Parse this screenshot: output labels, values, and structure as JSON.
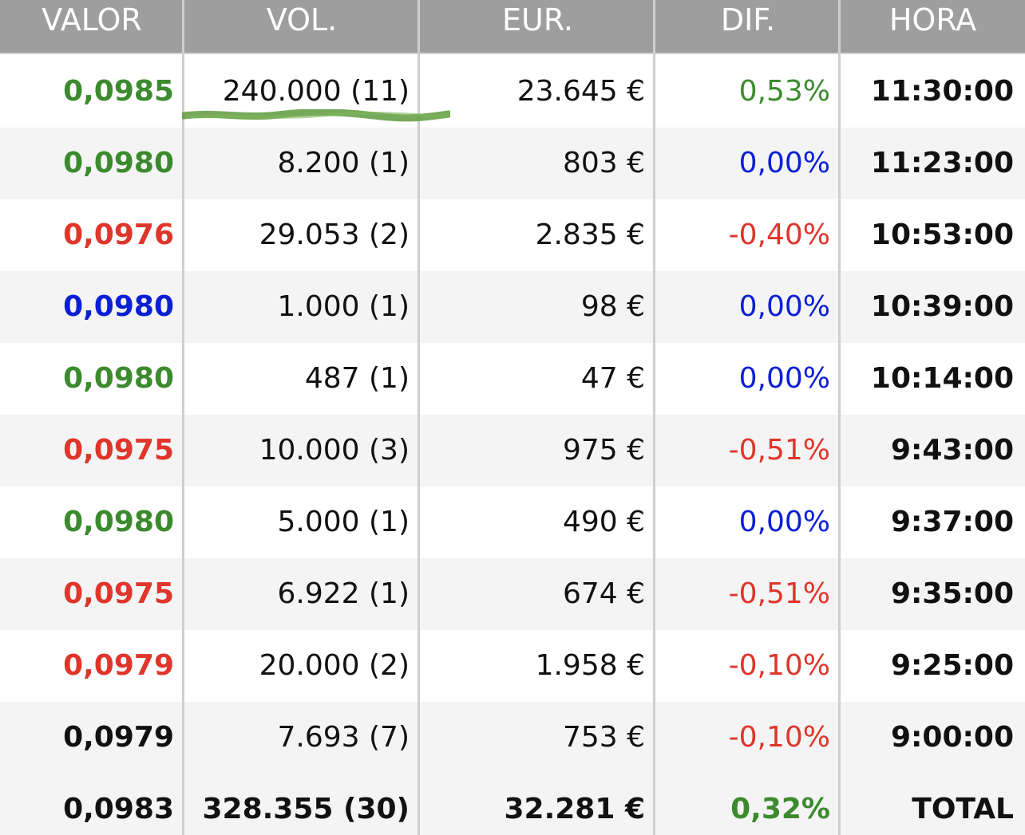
{
  "colors": {
    "green": "#3c8a2e",
    "red": "#e0352b",
    "blue": "#0a1fd6",
    "black": "#111111",
    "header_bg": "#9e9e9e",
    "highlight": "#5f9a3e"
  },
  "headers": {
    "valor": "VALOR",
    "vol": "VOL.",
    "eur": "EUR.",
    "dif": "DIF.",
    "hora": "HORA"
  },
  "rows": [
    {
      "valor": "0,0985",
      "valor_color": "green",
      "vol": "240.000 (11)",
      "eur": "23.645 €",
      "dif": "0,53%",
      "dif_color": "green",
      "hora": "11:30:00"
    },
    {
      "valor": "0,0980",
      "valor_color": "green",
      "vol": "8.200 (1)",
      "eur": "803 €",
      "dif": "0,00%",
      "dif_color": "blue",
      "hora": "11:23:00"
    },
    {
      "valor": "0,0976",
      "valor_color": "red",
      "vol": "29.053 (2)",
      "eur": "2.835 €",
      "dif": "-0,40%",
      "dif_color": "red",
      "hora": "10:53:00"
    },
    {
      "valor": "0,0980",
      "valor_color": "blue",
      "vol": "1.000 (1)",
      "eur": "98 €",
      "dif": "0,00%",
      "dif_color": "blue",
      "hora": "10:39:00"
    },
    {
      "valor": "0,0980",
      "valor_color": "green",
      "vol": "487 (1)",
      "eur": "47 €",
      "dif": "0,00%",
      "dif_color": "blue",
      "hora": "10:14:00"
    },
    {
      "valor": "0,0975",
      "valor_color": "red",
      "vol": "10.000 (3)",
      "eur": "975 €",
      "dif": "-0,51%",
      "dif_color": "red",
      "hora": "9:43:00"
    },
    {
      "valor": "0,0980",
      "valor_color": "green",
      "vol": "5.000 (1)",
      "eur": "490 €",
      "dif": "0,00%",
      "dif_color": "blue",
      "hora": "9:37:00"
    },
    {
      "valor": "0,0975",
      "valor_color": "red",
      "vol": "6.922 (1)",
      "eur": "674 €",
      "dif": "-0,51%",
      "dif_color": "red",
      "hora": "9:35:00"
    },
    {
      "valor": "0,0979",
      "valor_color": "red",
      "vol": "20.000 (2)",
      "eur": "1.958 €",
      "dif": "-0,10%",
      "dif_color": "red",
      "hora": "9:25:00"
    },
    {
      "valor": "0,0979",
      "valor_color": "black",
      "vol": "7.693 (7)",
      "eur": "753 €",
      "dif": "-0,10%",
      "dif_color": "red",
      "hora": "9:00:00"
    }
  ],
  "total": {
    "valor": "0,0983",
    "valor_color": "black",
    "vol": "328.355 (30)",
    "eur": "32.281 €",
    "dif": "0,32%",
    "dif_color": "green",
    "hora": "TOTAL"
  }
}
